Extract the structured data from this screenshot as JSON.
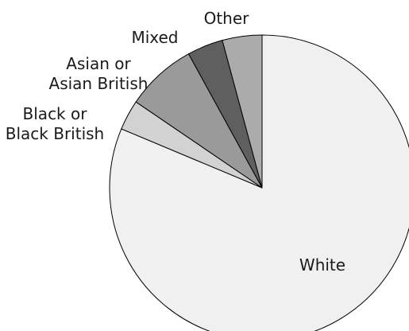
{
  "chart_data": {
    "type": "pie",
    "title": "",
    "start": "top, clockwise",
    "slices": [
      {
        "label": "White",
        "value": 81.3,
        "color": "#f0f0f0",
        "label_lines": [
          "White"
        ]
      },
      {
        "label": "Black or Black British",
        "value": 3.2,
        "color": "#d2d2d2",
        "label_lines": [
          "Black or",
          "Black British"
        ]
      },
      {
        "label": "Asian or Asian British",
        "value": 7.5,
        "color": "#9a9a9a",
        "label_lines": [
          "Asian or",
          "Asian British"
        ]
      },
      {
        "label": "Mixed",
        "value": 3.8,
        "color": "#5f5f5f",
        "label_lines": [
          "Mixed"
        ]
      },
      {
        "label": "Other",
        "value": 4.2,
        "color": "#ababab",
        "label_lines": [
          "Other"
        ]
      }
    ]
  }
}
